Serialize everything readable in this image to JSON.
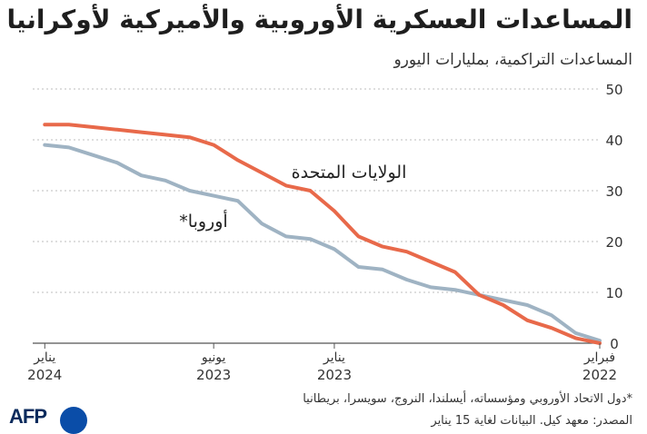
{
  "title": "المساعدات العسكرية الأوروبية والأميركية لأوكرانيا",
  "subtitle": "المساعدات التراكمية، بمليارات اليورو",
  "footnote": "*دول الاتحاد الأوروبي ومؤسساته، أيسلندا، النروج، سويسرا، بريطانيا",
  "source": "المصدر: معهد كيل. البيانات لغاية 15 يناير",
  "logo": "AFP",
  "colors": {
    "us": "#e8694a",
    "europe": "#9fb3c3",
    "grid": "#bdbdbd"
  },
  "chart_data": {
    "type": "line",
    "x_direction": "reversed",
    "x_ticks": [
      {
        "x": 0,
        "label1": "فبراير",
        "label2": "2022"
      },
      {
        "x": 11,
        "label1": "يناير",
        "label2": "2023"
      },
      {
        "x": 16,
        "label1": "يونيو",
        "label2": "2023"
      },
      {
        "x": 23,
        "label1": "يناير",
        "label2": "2024"
      }
    ],
    "xlim": [
      0,
      23.5
    ],
    "ylim": [
      0,
      50
    ],
    "y_ticks": [
      0,
      10,
      20,
      30,
      40,
      50
    ],
    "grid": true,
    "series": [
      {
        "name": "الولايات المتحدة",
        "key": "us",
        "points": [
          [
            0,
            0
          ],
          [
            1,
            1
          ],
          [
            2,
            3
          ],
          [
            3,
            4.5
          ],
          [
            4,
            7.5
          ],
          [
            5,
            9.5
          ],
          [
            6,
            14
          ],
          [
            7,
            16
          ],
          [
            8,
            18
          ],
          [
            9,
            19
          ],
          [
            10,
            21
          ],
          [
            11,
            26
          ],
          [
            12,
            30
          ],
          [
            13,
            31
          ],
          [
            14,
            33.5
          ],
          [
            15,
            36
          ],
          [
            16,
            39
          ],
          [
            17,
            40.5
          ],
          [
            18,
            41
          ],
          [
            19,
            41.5
          ],
          [
            20,
            42
          ],
          [
            21,
            42.5
          ],
          [
            22,
            43
          ],
          [
            23,
            43
          ]
        ]
      },
      {
        "name": "أوروبا*",
        "key": "europe",
        "points": [
          [
            0,
            0.5
          ],
          [
            1,
            2
          ],
          [
            2,
            5.5
          ],
          [
            3,
            7.5
          ],
          [
            4,
            8.5
          ],
          [
            5,
            9.5
          ],
          [
            6,
            10.5
          ],
          [
            7,
            11
          ],
          [
            8,
            12.5
          ],
          [
            9,
            14.5
          ],
          [
            10,
            15
          ],
          [
            11,
            18.5
          ],
          [
            12,
            20.5
          ],
          [
            13,
            21
          ],
          [
            14,
            23.5
          ],
          [
            15,
            28
          ],
          [
            16,
            29
          ],
          [
            17,
            30
          ],
          [
            18,
            32
          ],
          [
            19,
            33
          ],
          [
            20,
            35.5
          ],
          [
            21,
            37
          ],
          [
            22,
            38.5
          ],
          [
            23,
            39
          ]
        ]
      }
    ]
  }
}
